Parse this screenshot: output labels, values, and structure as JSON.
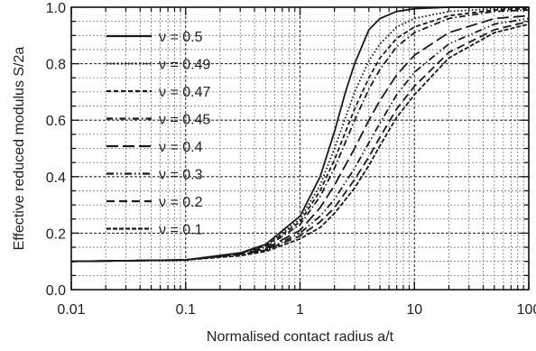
{
  "chart_data": {
    "type": "line",
    "title": "",
    "xlabel": "Normalised contact radius a/t",
    "ylabel": "Effective reduced modulus S/2a",
    "x_scale": "log",
    "xlim": [
      0.01,
      100
    ],
    "ylim": [
      0.0,
      1.0
    ],
    "grid": true,
    "legend_position": "left",
    "x_ticks": [
      {
        "value": 0.01,
        "label": "0.01"
      },
      {
        "value": 0.1,
        "label": "0.1"
      },
      {
        "value": 1,
        "label": "1"
      },
      {
        "value": 10,
        "label": "10"
      },
      {
        "value": 100,
        "label": "100"
      }
    ],
    "y_ticks": [
      {
        "value": 0.0,
        "label": "0.0"
      },
      {
        "value": 0.2,
        "label": "0.2"
      },
      {
        "value": 0.4,
        "label": "0.4"
      },
      {
        "value": 0.6,
        "label": "0.6"
      },
      {
        "value": 0.8,
        "label": "0.8"
      },
      {
        "value": 1.0,
        "label": "1.0"
      }
    ],
    "series": [
      {
        "name": "ν = 0.5",
        "dash": "solid",
        "x": [
          0.01,
          0.1,
          0.3,
          0.5,
          1,
          1.5,
          2,
          2.5,
          3,
          4,
          5,
          7,
          10,
          20,
          50,
          100
        ],
        "y": [
          0.1,
          0.105,
          0.13,
          0.16,
          0.26,
          0.4,
          0.56,
          0.7,
          0.8,
          0.92,
          0.96,
          0.985,
          0.995,
          1.0,
          1.0,
          1.0
        ]
      },
      {
        "name": "ν = 0.49",
        "dash": "dot",
        "x": [
          0.01,
          0.1,
          0.3,
          0.5,
          1,
          1.5,
          2,
          3,
          4,
          5,
          7,
          10,
          20,
          50,
          100
        ],
        "y": [
          0.1,
          0.105,
          0.13,
          0.155,
          0.25,
          0.37,
          0.5,
          0.7,
          0.81,
          0.87,
          0.93,
          0.96,
          0.985,
          0.995,
          1.0
        ]
      },
      {
        "name": "ν = 0.47",
        "dash": "short-dash",
        "x": [
          0.01,
          0.1,
          0.3,
          0.5,
          1,
          1.5,
          2,
          3,
          4,
          5,
          7,
          10,
          20,
          50,
          100
        ],
        "y": [
          0.1,
          0.105,
          0.13,
          0.155,
          0.24,
          0.35,
          0.46,
          0.64,
          0.75,
          0.82,
          0.89,
          0.93,
          0.97,
          0.99,
          0.995
        ]
      },
      {
        "name": "ν = 0.45",
        "dash": "dash-dot",
        "x": [
          0.01,
          0.1,
          0.3,
          0.5,
          1,
          1.5,
          2,
          3,
          4,
          5,
          7,
          10,
          20,
          50,
          100
        ],
        "y": [
          0.1,
          0.105,
          0.13,
          0.15,
          0.23,
          0.33,
          0.43,
          0.6,
          0.71,
          0.78,
          0.86,
          0.91,
          0.96,
          0.985,
          0.99
        ]
      },
      {
        "name": "ν = 0.4",
        "dash": "long-dash",
        "x": [
          0.01,
          0.1,
          0.3,
          0.5,
          1,
          1.5,
          2,
          3,
          4,
          5,
          7,
          10,
          20,
          50,
          100
        ],
        "y": [
          0.1,
          0.105,
          0.125,
          0.145,
          0.21,
          0.29,
          0.37,
          0.5,
          0.6,
          0.67,
          0.76,
          0.83,
          0.91,
          0.96,
          0.97
        ]
      },
      {
        "name": "ν = 0.3",
        "dash": "dash-dot-dot",
        "x": [
          0.01,
          0.1,
          0.3,
          0.5,
          1,
          1.5,
          2,
          3,
          4,
          5,
          7,
          10,
          20,
          50,
          100
        ],
        "y": [
          0.1,
          0.105,
          0.125,
          0.14,
          0.2,
          0.26,
          0.32,
          0.43,
          0.52,
          0.59,
          0.69,
          0.77,
          0.87,
          0.94,
          0.96
        ]
      },
      {
        "name": "ν = 0.2",
        "dash": "medium-dash",
        "x": [
          0.01,
          0.1,
          0.3,
          0.5,
          1,
          1.5,
          2,
          3,
          4,
          5,
          7,
          10,
          20,
          50,
          100
        ],
        "y": [
          0.1,
          0.105,
          0.125,
          0.14,
          0.19,
          0.24,
          0.29,
          0.39,
          0.47,
          0.54,
          0.64,
          0.72,
          0.84,
          0.92,
          0.95
        ]
      },
      {
        "name": "ν = 0.1",
        "dash": "dense-dash",
        "x": [
          0.01,
          0.1,
          0.3,
          0.5,
          1,
          1.5,
          2,
          3,
          4,
          5,
          7,
          10,
          20,
          50,
          100
        ],
        "y": [
          0.1,
          0.105,
          0.12,
          0.135,
          0.18,
          0.22,
          0.27,
          0.36,
          0.44,
          0.51,
          0.61,
          0.69,
          0.82,
          0.91,
          0.94
        ]
      }
    ]
  }
}
